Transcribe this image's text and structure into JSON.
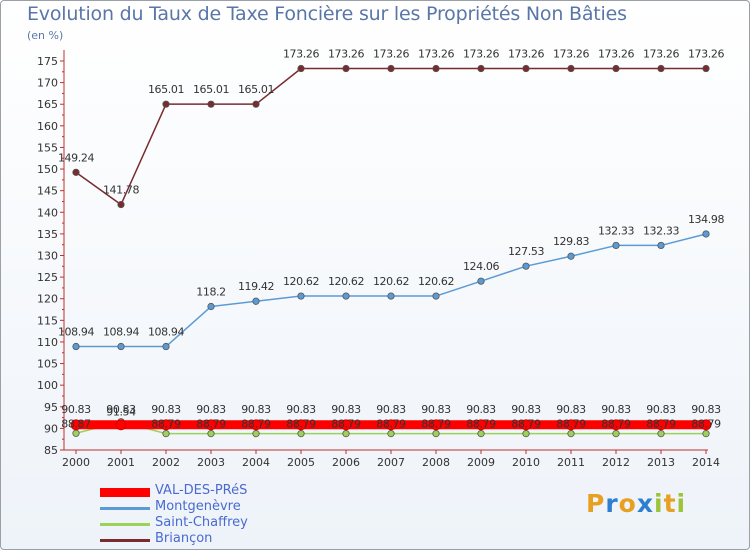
{
  "chart_data": {
    "type": "line",
    "title": "Evolution du Taux de Taxe Foncière sur les Propriétés Non Bâties",
    "ylabel": "(en %)",
    "xlabel": "",
    "ylim": [
      85,
      175
    ],
    "yticks": [
      "85",
      "90",
      "95",
      "100",
      "105",
      "110",
      "115",
      "120",
      "125",
      "130",
      "135",
      "140",
      "145",
      "150",
      "155",
      "160",
      "165",
      "170",
      "175"
    ],
    "categories": [
      "2000",
      "2001",
      "2002",
      "2003",
      "2004",
      "2005",
      "2006",
      "2007",
      "2008",
      "2009",
      "2010",
      "2011",
      "2012",
      "2013",
      "2014"
    ],
    "series": [
      {
        "name": "VAL-DES-PRéS",
        "color": "#ff0000",
        "values": [
          90.83,
          90.83,
          90.83,
          90.83,
          90.83,
          90.83,
          90.83,
          90.83,
          90.83,
          90.83,
          90.83,
          90.83,
          90.83,
          90.83,
          90.83
        ],
        "labels": [
          "90.83",
          "90.83",
          "90.83",
          "90.83",
          "90.83",
          "90.83",
          "90.83",
          "90.83",
          "90.83",
          "90.83",
          "90.83",
          "90.83",
          "90.83",
          "90.83",
          "90.83"
        ]
      },
      {
        "name": "Montgenèvre",
        "color": "#5b9bd5",
        "values": [
          108.94,
          108.94,
          108.94,
          118.2,
          119.42,
          120.62,
          120.62,
          120.62,
          120.62,
          124.06,
          127.53,
          129.83,
          132.33,
          132.33,
          134.98
        ],
        "labels": [
          "108.94",
          "108.94",
          "108.94",
          "118.2",
          "119.42",
          "120.62",
          "120.62",
          "120.62",
          "120.62",
          "124.06",
          "127.53",
          "129.83",
          "132.33",
          "132.33",
          "134.98"
        ]
      },
      {
        "name": "Saint-Chaffrey",
        "color": "#9cd25a",
        "values": [
          88.87,
          91.54,
          88.79,
          88.79,
          88.79,
          88.79,
          88.79,
          88.79,
          88.79,
          88.79,
          88.79,
          88.79,
          88.79,
          88.79,
          88.79
        ],
        "labels": [
          "88.87",
          "91.54",
          "88.79",
          "88.79",
          "88.79",
          "88.79",
          "88.79",
          "88.79",
          "88.79",
          "88.79",
          "88.79",
          "88.79",
          "88.79",
          "88.79",
          "88.79"
        ]
      },
      {
        "name": "Briançon",
        "color": "#7a2b30",
        "values": [
          149.24,
          141.78,
          165.01,
          165.01,
          165.01,
          173.26,
          173.26,
          173.26,
          173.26,
          173.26,
          173.26,
          173.26,
          173.26,
          173.26,
          173.26
        ],
        "labels": [
          "149.24",
          "141.78",
          "165.01",
          "165.01",
          "165.01",
          "173.26",
          "173.26",
          "173.26",
          "173.26",
          "173.26",
          "173.26",
          "173.26",
          "173.26",
          "173.26",
          "173.26"
        ]
      }
    ],
    "legend_position": "bottom-left"
  },
  "logo": {
    "letters": [
      "P",
      "r",
      "o",
      "x",
      "i",
      "t",
      "i"
    ],
    "colors": [
      "#e8a020",
      "#2f7fd0",
      "#e8a020",
      "#2f7fd0",
      "#9cc43a",
      "#e8a020",
      "#9cc43a"
    ]
  }
}
